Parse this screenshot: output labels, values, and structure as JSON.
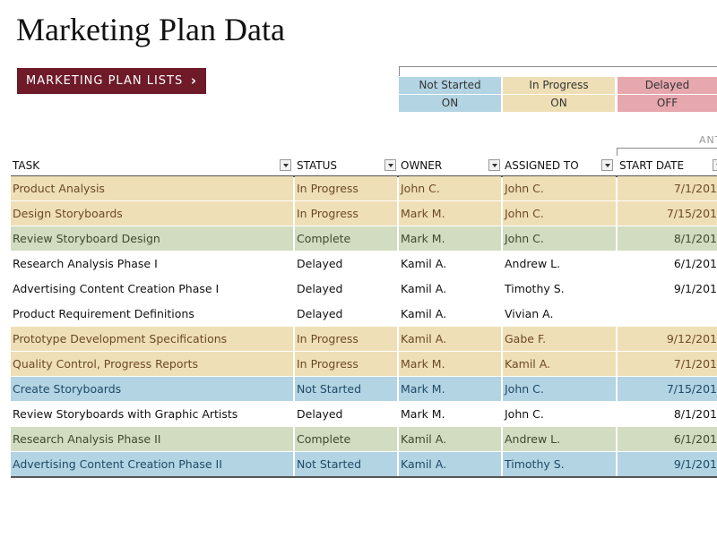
{
  "title": "Marketing Plan Data",
  "lists_button": {
    "label": "MARKETING PLAN LISTS",
    "chevron": "›"
  },
  "legend": {
    "statuses": [
      {
        "name": "Not Started",
        "toggle": "ON"
      },
      {
        "name": "In Progress",
        "toggle": "ON"
      },
      {
        "name": "Delayed",
        "toggle": "OFF"
      }
    ]
  },
  "ant_label": "ANT",
  "columns": [
    "TASK",
    "STATUS",
    "OWNER",
    "ASSIGNED TO",
    "START DATE"
  ],
  "colors": {
    "in_progress": "#efdfb6",
    "complete": "#d2dcc1",
    "not_started": "#b3d4e3",
    "delayed": "#ffffff",
    "delayed_toggle": "#e6a8ae",
    "progress_text": "#6b4a26",
    "complete_text": "#3e4a2b",
    "not_started_text": "#1f4a66",
    "delayed_text": "#111111"
  },
  "rows": [
    {
      "task": "Product Analysis",
      "status": "In Progress",
      "owner": "John C.",
      "assigned": "John C.",
      "start": "7/1/201"
    },
    {
      "task": "Design Storyboards",
      "status": "In Progress",
      "owner": "Mark M.",
      "assigned": "John C.",
      "start": "7/15/201"
    },
    {
      "task": "Review Storyboard Design",
      "status": "Complete",
      "owner": "Mark M.",
      "assigned": "John C.",
      "start": "8/1/201"
    },
    {
      "task": "Research Analysis Phase I",
      "status": "Delayed",
      "owner": "Kamil A.",
      "assigned": "Andrew L.",
      "start": "6/1/201"
    },
    {
      "task": "Advertising Content Creation Phase I",
      "status": "Delayed",
      "owner": "Kamil A.",
      "assigned": "Timothy S.",
      "start": "9/1/201"
    },
    {
      "task": "Product Requirement Definitions",
      "status": "Delayed",
      "owner": "Kamil A.",
      "assigned": "Vivian A.",
      "start": ""
    },
    {
      "task": "Prototype Development Specifications",
      "status": "In Progress",
      "owner": "Kamil A.",
      "assigned": "Gabe F.",
      "start": "9/12/201"
    },
    {
      "task": "Quality Control, Progress Reports",
      "status": "In Progress",
      "owner": "Mark M.",
      "assigned": "Kamil A.",
      "start": "7/1/201"
    },
    {
      "task": "Create Storyboards",
      "status": "Not Started",
      "owner": "Mark M.",
      "assigned": "John C.",
      "start": "7/15/201"
    },
    {
      "task": "Review Storyboards with Graphic Artists",
      "status": "Delayed",
      "owner": "Mark M.",
      "assigned": "John C.",
      "start": "8/1/201"
    },
    {
      "task": "Research Analysis Phase II",
      "status": "Complete",
      "owner": "Kamil A.",
      "assigned": "Andrew L.",
      "start": "6/1/201"
    },
    {
      "task": "Advertising Content Creation Phase II",
      "status": "Not Started",
      "owner": "Kamil A.",
      "assigned": "Timothy S.",
      "start": "9/1/201"
    }
  ]
}
